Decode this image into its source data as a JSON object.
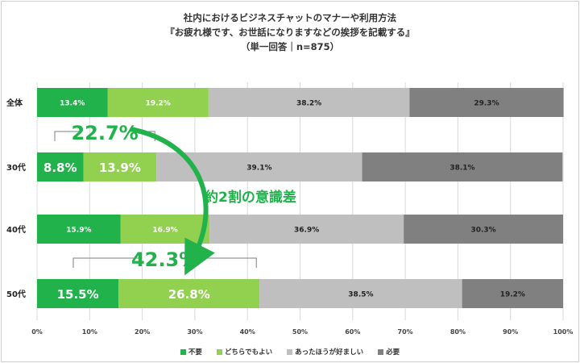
{
  "chart_data": {
    "type": "bar",
    "orientation": "horizontal-stacked-100",
    "title_lines": [
      "社内におけるビジネスチャットのマナーや利用方法",
      "『お疲れ様です、お世話になりますなどの挨拶を記載する』",
      "（単一回答｜n=875）"
    ],
    "categories": [
      "全体",
      "30代",
      "40代",
      "50代"
    ],
    "series": [
      {
        "name": "不要",
        "color": "#21b24b",
        "values": [
          13.4,
          8.8,
          15.9,
          15.5
        ]
      },
      {
        "name": "どちらでもよい",
        "color": "#92d050",
        "values": [
          19.2,
          13.9,
          16.9,
          26.8
        ]
      },
      {
        "name": "あったほうが好ましい",
        "color": "#bfbfbf",
        "values": [
          38.2,
          39.1,
          36.9,
          38.5
        ]
      },
      {
        "name": "必要",
        "color": "#808080",
        "values": [
          29.3,
          38.1,
          30.3,
          19.2
        ]
      }
    ],
    "data_labels": [
      [
        "13.4%",
        "19.2%",
        "38.2%",
        "29.3%"
      ],
      [
        "8.8%",
        "13.9%",
        "39.1%",
        "38.1%"
      ],
      [
        "15.9%",
        "16.9%",
        "36.9%",
        "30.3%"
      ],
      [
        "15.5%",
        "26.8%",
        "38.5%",
        "19.2%"
      ]
    ],
    "emphasized_rows": [
      1,
      3
    ],
    "x_ticks": [
      "0%",
      "10%",
      "20%",
      "30%",
      "40%",
      "50%",
      "60%",
      "70%",
      "80%",
      "90%",
      "100%"
    ],
    "xlim": [
      0,
      100
    ],
    "grid": true,
    "legend_position": "bottom",
    "annotations": [
      {
        "label": "22.7%",
        "row": 1,
        "span": [
          0,
          22.7
        ]
      },
      {
        "label": "42.3%",
        "row": 3,
        "span": [
          0,
          42.3
        ]
      }
    ],
    "arrow_label": "約2割の意識差",
    "accent_color": "#21b24b"
  }
}
